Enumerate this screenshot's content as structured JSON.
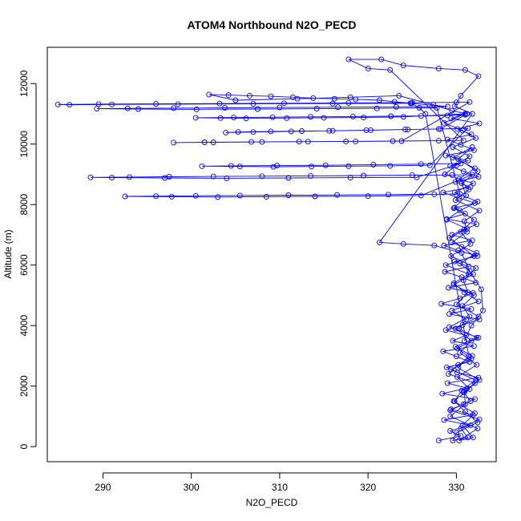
{
  "chart_data": {
    "type": "scatter",
    "title": "ATOM4 Northbound N2O_PECD",
    "xlabel": "N2O_PECD",
    "ylabel": "Altitude (m)",
    "xlim": [
      283.7,
      334.5
    ],
    "ylim": [
      -500,
      13200
    ],
    "x_ticks": [
      290,
      300,
      310,
      320,
      330
    ],
    "y_ticks": [
      0,
      2000,
      4000,
      6000,
      8000,
      10000,
      12000
    ],
    "points_connected": true,
    "marker": "open-circle",
    "color": "#0000FF",
    "legend": "none",
    "grid": false,
    "series": [
      {
        "x": [
          328.0,
          330.5,
          329.3,
          331.6,
          328.6,
          331.9,
          329.4,
          330.8,
          332.1,
          328.4,
          331.2,
          329.0,
          332.5,
          330.1,
          328.9,
          331.5,
          330.0,
          328.5,
          332.0,
          329.6,
          331.1,
          328.8,
          330.7,
          332.6,
          329.2,
          331.7,
          328.3,
          330.4,
          331.9,
          329.1,
          332.2,
          330.6,
          328.7,
          331.4,
          329.8,
          332.4,
          330.2,
          328.6,
          331.8,
          329.5,
          330.9,
          332.3,
          328.9,
          331.0,
          329.7,
          332.1,
          330.3,
          328.5,
          331.6,
          329.9,
          332.5,
          330.8,
          329.3,
          331.3,
          328.8,
          332.0,
          330.5,
          329.0,
          331.7,
          330.1,
          332.6,
          329.4,
          331.0,
          328.6,
          330.7,
          332.2,
          329.6,
          331.5,
          330.0,
          328.7,
          331.9,
          329.8,
          332.4,
          330.4,
          328.9,
          331.2,
          329.2,
          330.6,
          332.0,
          328.8,
          331.4,
          329.7,
          330.9,
          332.5,
          329.5,
          331.1,
          330.3,
          332.3,
          329.9,
          331.8,
          330.2,
          329.1,
          332.1,
          330.8,
          331.6,
          329.3,
          332.6,
          330.5,
          331.3,
          329.6,
          330.0,
          332.4,
          331.0,
          329.8,
          330.6,
          332.2,
          329.4,
          331.7,
          330.1,
          332.5,
          329.2,
          331.5,
          330.7,
          332.0,
          329.7,
          331.9,
          330.4,
          332.3,
          329.5,
          331.2,
          330.9,
          332.6,
          329.9,
          331.4,
          330.3,
          332.1,
          329.6,
          331.8,
          330.2,
          332.4,
          330.6,
          331.1,
          329.8,
          332.0,
          330.5,
          331.6,
          329.4,
          332.2,
          330.8,
          331.3,
          330.0,
          332.5,
          329.9,
          331.7,
          330.4,
          332.3,
          330.1,
          331.5,
          329.7,
          332.1,
          330.7,
          331.9,
          330.3,
          332.4,
          329.3,
          331.0,
          330.9,
          332.6,
          330.2,
          331.4,
          326.5,
          325.8,
          324.9,
          323.0,
          321.3,
          318.6,
          316.2,
          313.8,
          311.5,
          309.0,
          306.6,
          304.2,
          302.0,
          305.0,
          312.0,
          318.0,
          323.5,
          327.4,
          329.5,
          331.2,
          324.0,
          319.5,
          315.0,
          310.8,
          306.2,
          303.3,
          300.5,
          304.8,
          309.2,
          313.5,
          318.3,
          322.6,
          326.0,
          329.0,
          331.0,
          328.2,
          324.5,
          320.3,
          316.0,
          312.5,
          309.0,
          305.3,
          303.9,
          307.0,
          311.3,
          315.6,
          319.8,
          324.2,
          328.0,
          331.3,
          327.0,
          322.5,
          317.8,
          313.6,
          309.3,
          305.5,
          301.2,
          304.5,
          309.7,
          315.2,
          320.6,
          326.0,
          330.5,
          325.5,
          318.0,
          311.0,
          304.0,
          297.0,
          291.0,
          288.6,
          293.0,
          297.5,
          302.5,
          308.0,
          313.5,
          319.5,
          325.0,
          329.5,
          331.8,
          326.0,
          320.0,
          314.0,
          308.5,
          303.0,
          297.8,
          292.5,
          296.0,
          300.5,
          305.5,
          311.0,
          316.5,
          322.3,
          327.5,
          330.4,
          327.8,
          321.0,
          314.2,
          307.5,
          300.6,
          294.0,
          289.3,
          292.8,
          298.0,
          303.8,
          310.0,
          316.6,
          323.2,
          329.0,
          324.8,
          316.0,
          307.0,
          298.5,
          291.0,
          286.2,
          284.9,
          289.5,
          296.0,
          303.2,
          310.5,
          317.8,
          325.0,
          330.0,
          331.5,
          323.8,
          318.6,
          313.2,
          308.0,
          302.5,
          298.0,
          301.5,
          306.8,
          312.2,
          317.5,
          322.8,
          328.0,
          330.8,
          322.5,
          320.0,
          317.8,
          321.5,
          324.0,
          328.0,
          331.0,
          332.5,
          330.5,
          329.8,
          331.8,
          321.3,
          324.0,
          327.5,
          330.6,
          331.5,
          332.8,
          333.0,
          331.7,
          330.9
        ],
        "y": [
          200,
          350,
          520,
          700,
          880,
          1050,
          1230,
          1400,
          1570,
          1750,
          1930,
          2100,
          2280,
          2450,
          2620,
          2800,
          2980,
          3150,
          3320,
          3500,
          3680,
          3850,
          4020,
          4200,
          4380,
          4550,
          4720,
          4900,
          5080,
          5250,
          5420,
          5600,
          5780,
          5950,
          6120,
          6300,
          6480,
          6650,
          6820,
          7000,
          7180,
          7350,
          7520,
          7700,
          7880,
          8050,
          8220,
          8400,
          8580,
          8750,
          8920,
          9100,
          9280,
          9450,
          9620,
          9800,
          9980,
          10150,
          10320,
          10500,
          10680,
          10850,
          11000,
          10700,
          10450,
          10200,
          9900,
          9600,
          9300,
          9000,
          8700,
          8400,
          8100,
          7800,
          7500,
          7200,
          6900,
          6600,
          6300,
          6000,
          5700,
          5400,
          5100,
          4800,
          4500,
          4200,
          3900,
          3600,
          3300,
          3000,
          2700,
          2400,
          2100,
          1800,
          1500,
          1200,
          900,
          600,
          300,
          200,
          450,
          800,
          1150,
          1500,
          1850,
          2200,
          2550,
          2900,
          3250,
          3600,
          3950,
          4300,
          4650,
          5000,
          5350,
          5700,
          6050,
          6400,
          6750,
          7100,
          7450,
          7800,
          8150,
          8500,
          8850,
          9200,
          9550,
          9900,
          9500,
          9100,
          8700,
          8300,
          7900,
          7500,
          7100,
          6700,
          6300,
          5900,
          5500,
          5100,
          4700,
          4300,
          3900,
          3500,
          3100,
          2700,
          2300,
          1900,
          1500,
          1100,
          700,
          300,
          200,
          600,
          1000,
          1400,
          1800,
          2200,
          2600,
          3000,
          11000,
          11200,
          11350,
          11400,
          11450,
          11480,
          11500,
          11520,
          11550,
          11580,
          11600,
          11620,
          11640,
          11450,
          11500,
          11550,
          11600,
          11300,
          11100,
          11000,
          10900,
          10880,
          10870,
          10860,
          10850,
          10860,
          10870,
          10880,
          10890,
          10900,
          10910,
          10920,
          10930,
          10950,
          10970,
          10500,
          10480,
          10460,
          10440,
          10430,
          10420,
          10400,
          10380,
          10400,
          10420,
          10440,
          10460,
          10480,
          10500,
          10520,
          9300,
          9280,
          9270,
          9260,
          9250,
          9260,
          9270,
          9280,
          9290,
          9300,
          9320,
          9340,
          9360,
          8900,
          8890,
          8880,
          8870,
          8880,
          8890,
          8900,
          8910,
          8920,
          8930,
          8940,
          8950,
          8960,
          8970,
          8980,
          8990,
          8300,
          8280,
          8270,
          8260,
          8250,
          8260,
          8270,
          8280,
          8290,
          8300,
          8310,
          8320,
          8330,
          8340,
          8350,
          11200,
          11180,
          11170,
          11160,
          11150,
          11160,
          11170,
          11180,
          11190,
          11200,
          11210,
          11220,
          11230,
          11240,
          11350,
          11340,
          11330,
          11320,
          11310,
          11300,
          11310,
          11320,
          11330,
          11340,
          11350,
          11360,
          11370,
          11380,
          11390,
          10100,
          10090,
          10080,
          10070,
          10060,
          10050,
          10060,
          10070,
          10080,
          10090,
          10100,
          10110,
          10120,
          12450,
          12500,
          12800,
          12800,
          12600,
          12500,
          12450,
          12250,
          11600,
          11250,
          11000,
          6750,
          6700,
          6650,
          6400,
          5800,
          5200,
          4500,
          4000,
          3500
        ]
      }
    ]
  }
}
